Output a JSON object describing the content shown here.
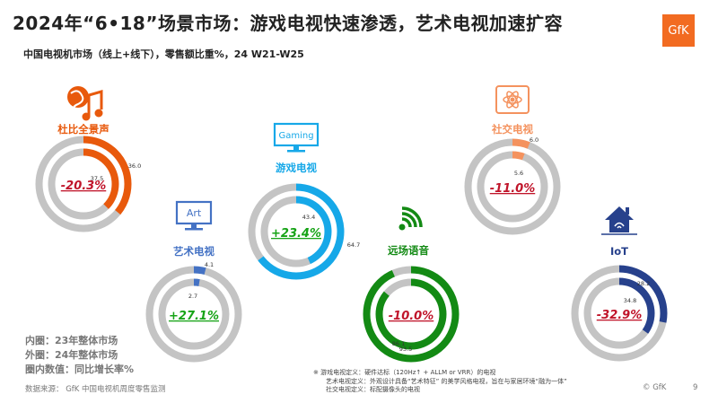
{
  "title": "2024年“6•18”场景市场：游戏电视快速渗透，艺术电视加速扩容",
  "subtitle": "中国电视机市场（线上+线下），零售额比重%，24 W21-W25",
  "logo": "GfK",
  "legend": [
    "内圈：23年整体市场",
    "外圈：24年整体市场",
    "圈内数值：同比增长率%"
  ],
  "notes": [
    "※ 游戏电视定义：硬件达标（120Hz↑ + ALLM or VRR）的电视",
    "艺术电视定义：外观设计具备“艺术特征” 的美学风格电视，旨在与家居环境“融为一体”",
    "社交电视定义：标配摄像头的电视"
  ],
  "source": "数据来源： GfK 中国电视机周度零售监测",
  "copyright": "© GfK",
  "page_number": "9",
  "chart_data": [
    {
      "type": "pie",
      "name": "杜比全景声",
      "inner": 37.5,
      "outer": 36.0,
      "growth": "-20.3%",
      "color": "#e8590c",
      "icon": "music-globe-icon"
    },
    {
      "type": "pie",
      "name": "艺术电视",
      "inner": 2.7,
      "outer": 4.1,
      "growth": "+27.1%",
      "color": "#4472c4",
      "icon": "art-tv-icon",
      "icon_text": "Art"
    },
    {
      "type": "pie",
      "name": "游戏电视",
      "inner": 43.4,
      "outer": 64.7,
      "growth": "+23.4%",
      "color": "#16a8e8",
      "icon": "gaming-tv-icon",
      "icon_text": "Gaming"
    },
    {
      "type": "pie",
      "name": "远场语音",
      "inner": 86.1,
      "outer": 93.5,
      "growth": "-10.0%",
      "color": "#138a14",
      "icon": "voice-signal-icon"
    },
    {
      "type": "pie",
      "name": "社交电视",
      "inner": 5.6,
      "outer": 6.0,
      "growth": "-11.0%",
      "color": "#f4925e",
      "icon": "social-atom-icon"
    },
    {
      "type": "pie",
      "name": "IoT",
      "inner": 34.8,
      "outer": 28.2,
      "growth": "-32.9%",
      "color": "#27418c",
      "icon": "smart-home-icon"
    }
  ]
}
